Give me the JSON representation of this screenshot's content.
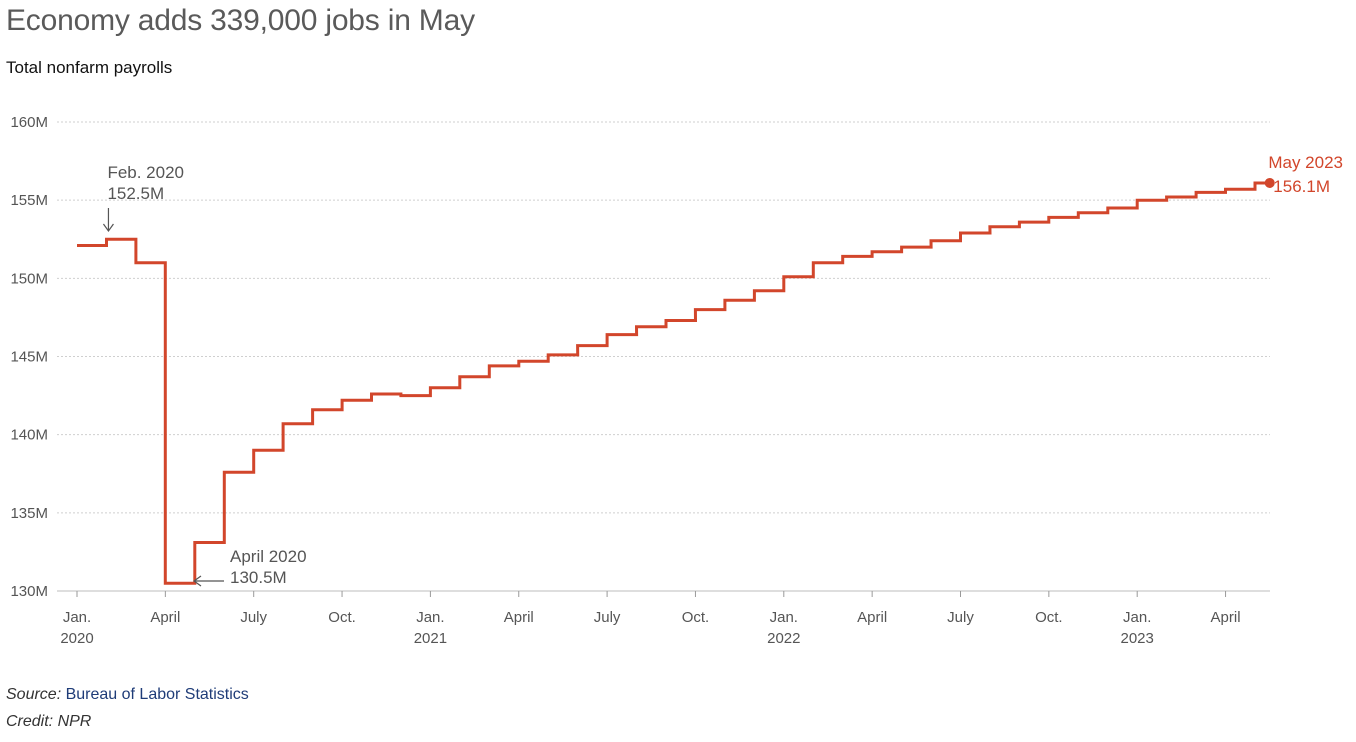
{
  "title": "Economy adds 339,000 jobs in May",
  "subtitle": "Total nonfarm payrolls",
  "source_label": "Source:",
  "source_text": "Bureau of Labor Statistics",
  "credit_text": "Credit: NPR",
  "colors": {
    "line": "#d2462b",
    "grid": "#cfcfcf",
    "axis_text": "#555555",
    "annotation": "#555555"
  },
  "chart_data": {
    "type": "line",
    "step": true,
    "title": "Economy adds 339,000 jobs in May",
    "subtitle": "Total nonfarm payrolls",
    "xlabel": "",
    "ylabel": "",
    "ylim": [
      130,
      160
    ],
    "grid": true,
    "y_ticks": [
      {
        "value": 160,
        "label": "160M"
      },
      {
        "value": 155,
        "label": "155M"
      },
      {
        "value": 150,
        "label": "150M"
      },
      {
        "value": 145,
        "label": "145M"
      },
      {
        "value": 140,
        "label": "140M"
      },
      {
        "value": 135,
        "label": "135M"
      },
      {
        "value": 130,
        "label": "130M"
      }
    ],
    "x_ticks": [
      {
        "month": "2020-01",
        "line1": "Jan.",
        "line2": "2020"
      },
      {
        "month": "2020-04",
        "line1": "April",
        "line2": ""
      },
      {
        "month": "2020-07",
        "line1": "July",
        "line2": ""
      },
      {
        "month": "2020-10",
        "line1": "Oct.",
        "line2": ""
      },
      {
        "month": "2021-01",
        "line1": "Jan.",
        "line2": "2021"
      },
      {
        "month": "2021-04",
        "line1": "April",
        "line2": ""
      },
      {
        "month": "2021-07",
        "line1": "July",
        "line2": ""
      },
      {
        "month": "2021-10",
        "line1": "Oct.",
        "line2": ""
      },
      {
        "month": "2022-01",
        "line1": "Jan.",
        "line2": "2022"
      },
      {
        "month": "2022-04",
        "line1": "April",
        "line2": ""
      },
      {
        "month": "2022-07",
        "line1": "July",
        "line2": ""
      },
      {
        "month": "2022-10",
        "line1": "Oct.",
        "line2": ""
      },
      {
        "month": "2023-01",
        "line1": "Jan.",
        "line2": "2023"
      },
      {
        "month": "2023-04",
        "line1": "April",
        "line2": ""
      }
    ],
    "series": [
      {
        "x": [
          "2020-01",
          "2020-02",
          "2020-03",
          "2020-04",
          "2020-05",
          "2020-06",
          "2020-07",
          "2020-08",
          "2020-09",
          "2020-10",
          "2020-11",
          "2020-12",
          "2021-01",
          "2021-02",
          "2021-03",
          "2021-04",
          "2021-05",
          "2021-06",
          "2021-07",
          "2021-08",
          "2021-09",
          "2021-10",
          "2021-11",
          "2021-12",
          "2022-01",
          "2022-02",
          "2022-03",
          "2022-04",
          "2022-05",
          "2022-06",
          "2022-07",
          "2022-08",
          "2022-09",
          "2022-10",
          "2022-11",
          "2022-12",
          "2023-01",
          "2023-02",
          "2023-03",
          "2023-04",
          "2023-05"
        ],
        "values": [
          152.1,
          152.5,
          151.0,
          130.5,
          133.1,
          137.6,
          139.0,
          140.7,
          141.6,
          142.2,
          142.6,
          142.5,
          143.0,
          143.7,
          144.4,
          144.7,
          145.1,
          145.7,
          146.4,
          146.9,
          147.3,
          148.0,
          148.6,
          149.2,
          150.1,
          151.0,
          151.4,
          151.7,
          152.0,
          152.4,
          152.9,
          153.3,
          153.6,
          153.9,
          154.2,
          154.5,
          155.0,
          155.2,
          155.5,
          155.7,
          156.1
        ]
      }
    ],
    "annotations": [
      {
        "month": "2020-02",
        "line1": "Feb. 2020",
        "line2": "152.5M"
      },
      {
        "month": "2020-04",
        "line1": "April 2020",
        "line2": "130.5M"
      },
      {
        "month": "2023-05",
        "line1": "May 2023",
        "line2": "156.1M"
      }
    ]
  }
}
